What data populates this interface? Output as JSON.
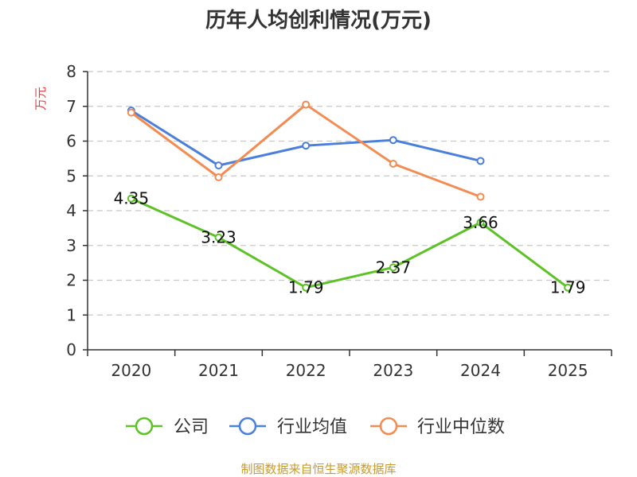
{
  "chart_data": {
    "type": "line",
    "title": "历年人均创利情况(万元)",
    "ylabel": "万元",
    "xlabel": "",
    "categories": [
      "2020",
      "2021",
      "2022",
      "2023",
      "2024",
      "2025"
    ],
    "ylim": [
      0,
      8
    ],
    "yticks": [
      0,
      1,
      2,
      3,
      4,
      5,
      6,
      7,
      8
    ],
    "grid": true,
    "legend_position": "bottom",
    "series": [
      {
        "name": "公司",
        "color": "#5cc225",
        "values": [
          4.35,
          3.23,
          1.79,
          2.37,
          3.66,
          1.79
        ],
        "labels": [
          "4.35",
          "3.23",
          "1.79",
          "2.37",
          "3.66",
          "1.79"
        ]
      },
      {
        "name": "行业均值",
        "color": "#4a7fdb",
        "values": [
          6.88,
          5.3,
          5.87,
          6.03,
          5.43,
          null
        ]
      },
      {
        "name": "行业中位数",
        "color": "#f38c52",
        "values": [
          6.82,
          4.96,
          7.05,
          5.35,
          4.4,
          null
        ]
      }
    ],
    "source": "制图数据来自恒生聚源数据库"
  }
}
